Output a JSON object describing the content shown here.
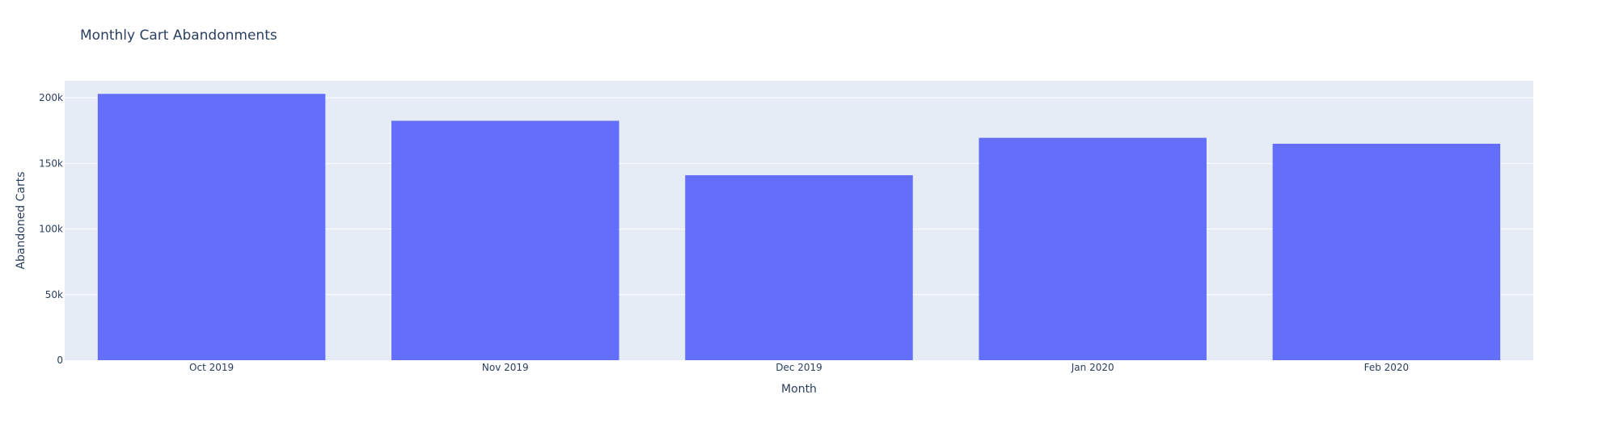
{
  "chart_data": {
    "type": "bar",
    "title": "Monthly Cart Abandonments",
    "xlabel": "Month",
    "ylabel": "Abandoned Carts",
    "categories": [
      "Oct 2019",
      "Nov 2019",
      "Dec 2019",
      "Jan 2020",
      "Feb 2020"
    ],
    "values": [
      203000,
      182500,
      141000,
      169500,
      165000
    ],
    "ylim": [
      0,
      213000
    ],
    "yticks": [
      0,
      50000,
      100000,
      150000,
      200000
    ],
    "ytick_labels": [
      "0",
      "50k",
      "100k",
      "150k",
      "200k"
    ],
    "grid": true,
    "legend": "none",
    "colors": {
      "bar": "#636efa",
      "plot_background": "#e5ecf6",
      "grid": "#ffffff",
      "text": "#2a3f5f"
    }
  }
}
